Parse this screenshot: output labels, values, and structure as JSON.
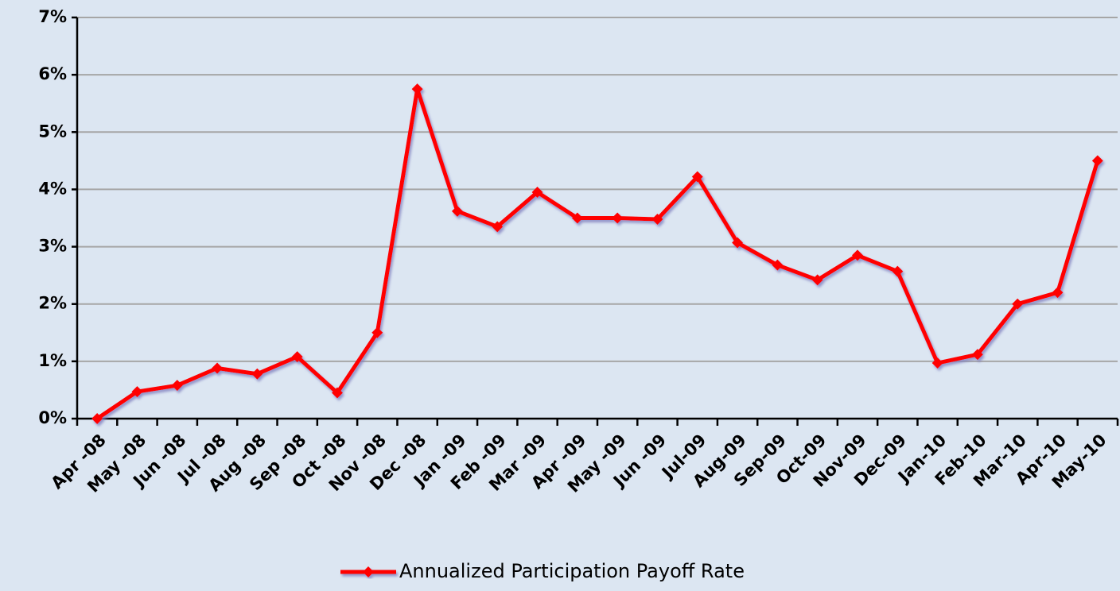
{
  "chart_data": {
    "type": "line",
    "categories": [
      "Apr -08",
      "May -08",
      "Jun -08",
      "Jul -08",
      "Aug -08",
      "Sep -08",
      "Oct -08",
      "Nov -08",
      "Dec -08",
      "Jan -09",
      "Feb -09",
      "Mar -09",
      "Apr -09",
      "May -09",
      "Jun -09",
      "Jul-09",
      "Aug-09",
      "Sep-09",
      "Oct-09",
      "Nov-09",
      "Dec-09",
      "Jan-10",
      "Feb-10",
      "Mar-10",
      "Apr-10",
      "May-10"
    ],
    "series": [
      {
        "name": "Annualized Participation Payoff Rate",
        "color": "#ff0000",
        "values": [
          0,
          0.47,
          0.58,
          0.88,
          0.78,
          1.08,
          0.45,
          1.5,
          5.75,
          3.62,
          3.35,
          3.95,
          3.5,
          3.5,
          3.48,
          4.22,
          3.07,
          2.68,
          2.42,
          2.85,
          2.57,
          0.97,
          1.12,
          2.0,
          2.2,
          4.5
        ]
      }
    ],
    "ylim": [
      0,
      7
    ],
    "yticks": [
      {
        "value": 0,
        "label": "0%"
      },
      {
        "value": 1,
        "label": "1%"
      },
      {
        "value": 2,
        "label": "2%"
      },
      {
        "value": 3,
        "label": "3%"
      },
      {
        "value": 4,
        "label": "4%"
      },
      {
        "value": 5,
        "label": "5%"
      },
      {
        "value": 6,
        "label": "6%"
      },
      {
        "value": 7,
        "label": "7%"
      }
    ],
    "grid": true,
    "legend": "bottom"
  }
}
